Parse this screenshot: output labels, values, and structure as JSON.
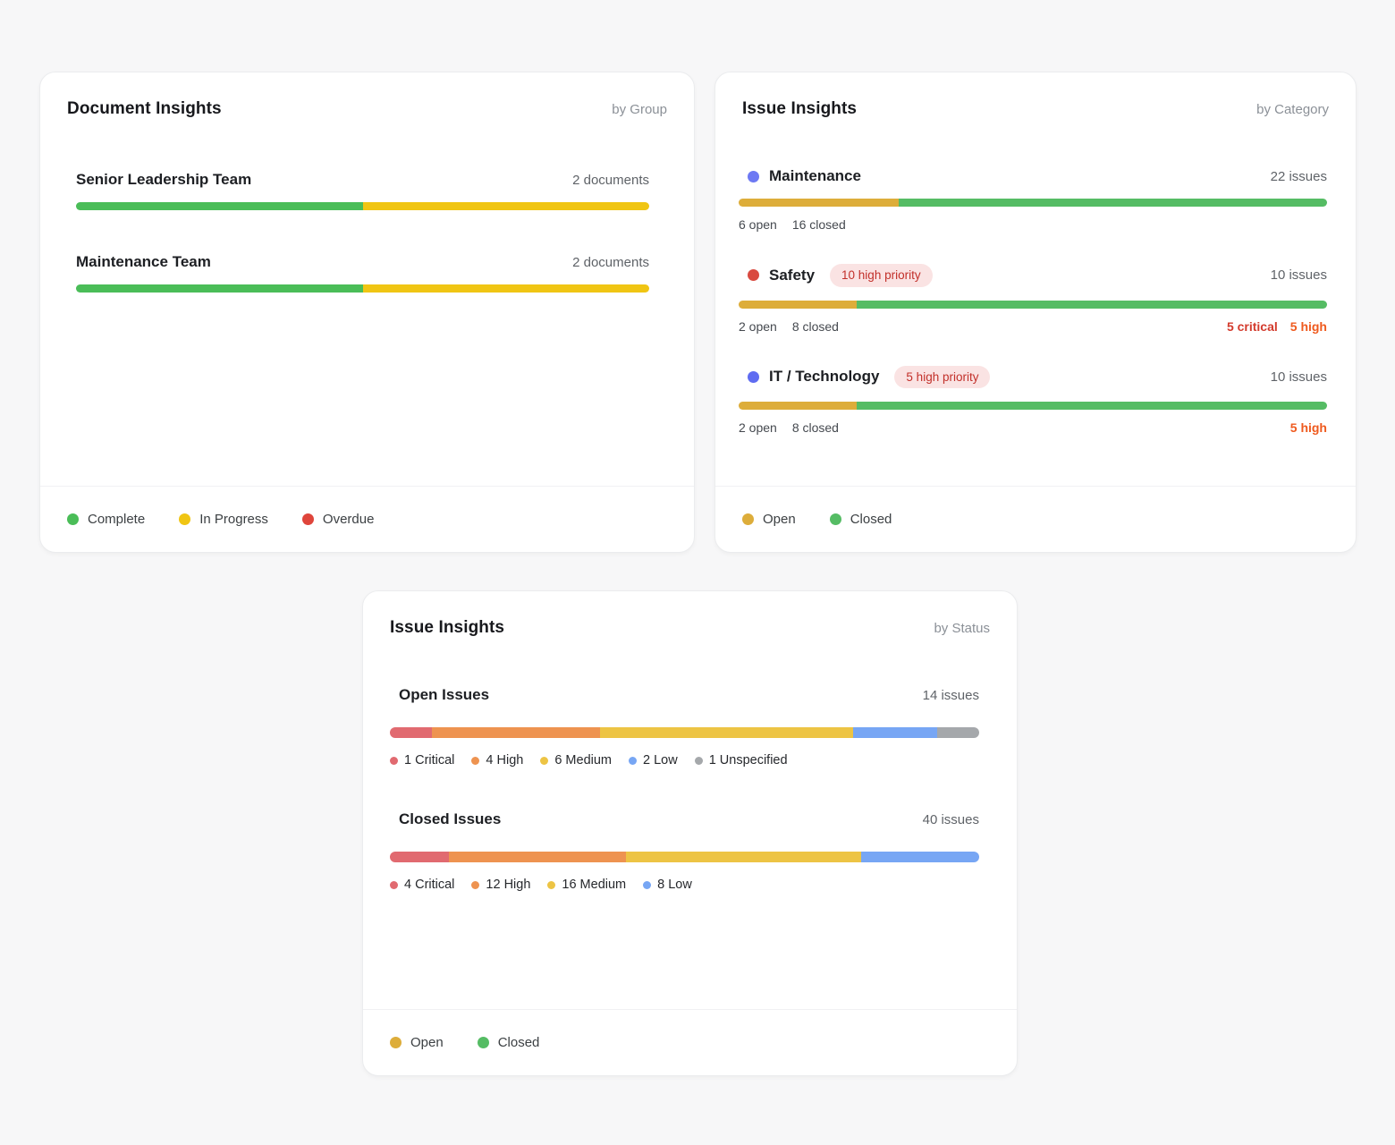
{
  "colors": {
    "complete": "#4abd58",
    "in_progress": "#f0c513",
    "overdue": "#df453b",
    "open": "#ddad3a",
    "closed": "#55bc64",
    "critical": "#e16a70",
    "high": "#ee9350",
    "medium": "#edc444",
    "low": "#77a6f4",
    "unspecified": "#a5a8ab",
    "critical_text": "#d33a2c",
    "high_text": "#ef5a1e"
  },
  "cards": {
    "documents": {
      "title": "Document Insights",
      "subtitle": "by Group",
      "rows": [
        {
          "label": "Senior Leadership Team",
          "count": "2 documents",
          "segments": [
            {
              "color": "complete",
              "value": 1
            },
            {
              "color": "in_progress",
              "value": 1
            }
          ]
        },
        {
          "label": "Maintenance Team",
          "count": "2 documents",
          "segments": [
            {
              "color": "complete",
              "value": 1
            },
            {
              "color": "in_progress",
              "value": 1
            }
          ]
        }
      ],
      "legend": [
        {
          "label": "Complete",
          "color": "complete"
        },
        {
          "label": "In Progress",
          "color": "in_progress"
        },
        {
          "label": "Overdue",
          "color": "overdue"
        }
      ]
    },
    "by_category": {
      "title": "Issue Insights",
      "subtitle": "by Category",
      "rows": [
        {
          "label": "Maintenance",
          "dot": "#6d79f3",
          "badge": "",
          "count": "22 issues",
          "open": 6,
          "closed": 16,
          "open_text": "6 open",
          "closed_text": "16 closed",
          "notes": []
        },
        {
          "label": "Safety",
          "dot": "#d94a40",
          "badge": "10 high priority",
          "count": "10 issues",
          "open": 2,
          "closed": 8,
          "open_text": "2 open",
          "closed_text": "8 closed",
          "notes": [
            {
              "text": "5 critical",
              "color": "critical_text"
            },
            {
              "text": "5 high",
              "color": "high_text"
            }
          ]
        },
        {
          "label": "IT / Technology",
          "dot": "#5f6cf1",
          "badge": "5 high priority",
          "count": "10 issues",
          "open": 2,
          "closed": 8,
          "open_text": "2 open",
          "closed_text": "8 closed",
          "notes": [
            {
              "text": "5 high",
              "color": "high_text"
            }
          ]
        }
      ],
      "legend": [
        {
          "label": "Open",
          "color": "open"
        },
        {
          "label": "Closed",
          "color": "closed"
        }
      ]
    },
    "by_status": {
      "title": "Issue Insights",
      "subtitle": "by Status",
      "rows": [
        {
          "label": "Open Issues",
          "count": "14 issues",
          "segments": [
            {
              "label": "1 Critical",
              "color": "critical",
              "value": 1
            },
            {
              "label": "4 High",
              "color": "high",
              "value": 4
            },
            {
              "label": "6 Medium",
              "color": "medium",
              "value": 6
            },
            {
              "label": "2 Low",
              "color": "low",
              "value": 2
            },
            {
              "label": "1 Unspecified",
              "color": "unspecified",
              "value": 1
            }
          ]
        },
        {
          "label": "Closed Issues",
          "count": "40 issues",
          "segments": [
            {
              "label": "4 Critical",
              "color": "critical",
              "value": 4
            },
            {
              "label": "12 High",
              "color": "high",
              "value": 12
            },
            {
              "label": "16 Medium",
              "color": "medium",
              "value": 16
            },
            {
              "label": "8 Low",
              "color": "low",
              "value": 8
            }
          ]
        }
      ],
      "legend": [
        {
          "label": "Open",
          "color": "open"
        },
        {
          "label": "Closed",
          "color": "closed"
        }
      ]
    }
  },
  "chart_data": [
    {
      "type": "bar",
      "title": "Document Insights by Group",
      "categories": [
        "Senior Leadership Team",
        "Maintenance Team"
      ],
      "series": [
        {
          "name": "Complete",
          "values": [
            1,
            1
          ]
        },
        {
          "name": "In Progress",
          "values": [
            1,
            1
          ]
        },
        {
          "name": "Overdue",
          "values": [
            0,
            0
          ]
        }
      ],
      "totals": [
        2,
        2
      ],
      "legend_position": "bottom",
      "annotations": [
        "2 documents",
        "2 documents"
      ]
    },
    {
      "type": "bar",
      "title": "Issue Insights by Category",
      "categories": [
        "Maintenance",
        "Safety",
        "IT / Technology"
      ],
      "series": [
        {
          "name": "Open",
          "values": [
            6,
            2,
            2
          ]
        },
        {
          "name": "Closed",
          "values": [
            16,
            8,
            8
          ]
        }
      ],
      "totals": [
        22,
        10,
        10
      ],
      "legend_position": "bottom",
      "annotations": [
        "",
        "10 high priority; 5 critical 5 high",
        "5 high priority; 5 high"
      ]
    },
    {
      "type": "bar",
      "title": "Issue Insights by Status",
      "categories": [
        "Open Issues",
        "Closed Issues"
      ],
      "series": [
        {
          "name": "Critical",
          "values": [
            1,
            4
          ]
        },
        {
          "name": "High",
          "values": [
            4,
            12
          ]
        },
        {
          "name": "Medium",
          "values": [
            6,
            16
          ]
        },
        {
          "name": "Low",
          "values": [
            2,
            8
          ]
        },
        {
          "name": "Unspecified",
          "values": [
            1,
            0
          ]
        }
      ],
      "totals": [
        14,
        40
      ],
      "legend_position": "bottom"
    }
  ]
}
